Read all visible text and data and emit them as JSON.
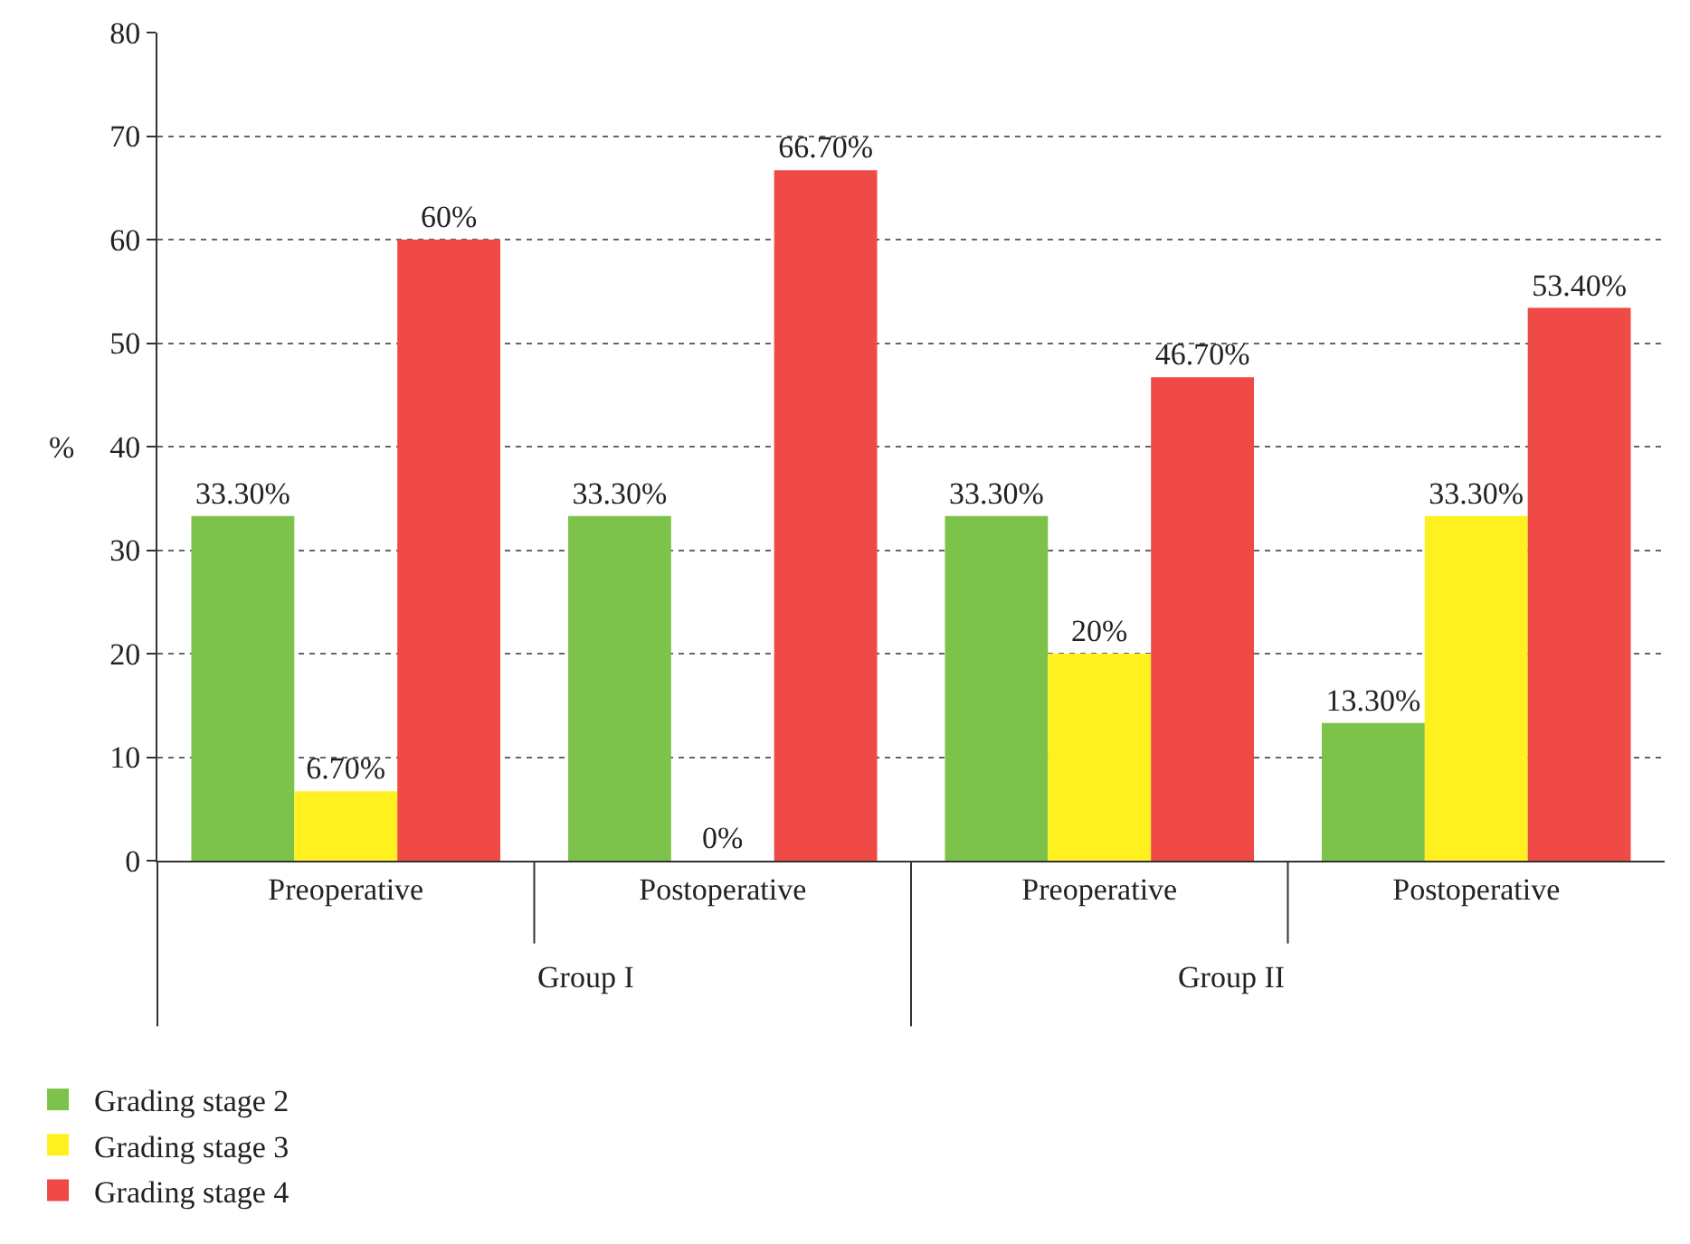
{
  "chart_data": {
    "type": "bar",
    "ylabel": "%",
    "categories": [
      "Preoperative",
      "Postoperative",
      "Preoperative",
      "Postoperative"
    ],
    "series": [
      {
        "name": "Grading stage 2",
        "color": "#7dc24b",
        "values": [
          33.3,
          33.3,
          33.3,
          13.3
        ],
        "value_labels": [
          "33.30%",
          "33.30%",
          "33.30%",
          "13.30%"
        ]
      },
      {
        "name": "Grading stage 3",
        "color": "#fff01f",
        "values": [
          6.7,
          0,
          20,
          33.3
        ],
        "value_labels": [
          "6.70%",
          "0%",
          "20%",
          "33.30%"
        ]
      },
      {
        "name": "Grading stage 4",
        "color": "#ef4a45",
        "values": [
          60,
          66.7,
          46.7,
          53.4
        ],
        "value_labels": [
          "60%",
          "66.70%",
          "46.70%",
          "53.40%"
        ]
      }
    ],
    "annotations": [
      "Group I",
      "Group II"
    ],
    "ylim": [
      0,
      80
    ],
    "yticks": [
      0,
      10,
      20,
      30,
      40,
      50,
      60,
      70,
      80
    ],
    "grid": "y",
    "legend": "bottom left"
  }
}
